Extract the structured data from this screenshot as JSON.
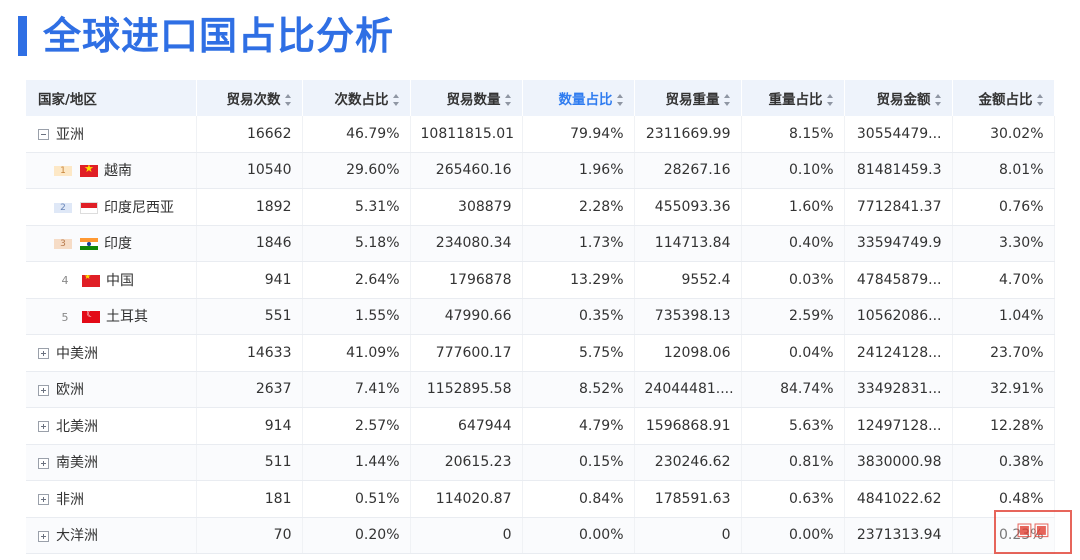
{
  "title": "全球进口国占比分析",
  "columns": [
    {
      "label": "国家/地区",
      "sortable": false,
      "active": false
    },
    {
      "label": "贸易次数",
      "sortable": true,
      "active": false
    },
    {
      "label": "次数占比",
      "sortable": true,
      "active": false
    },
    {
      "label": "贸易数量",
      "sortable": true,
      "active": false
    },
    {
      "label": "数量占比",
      "sortable": true,
      "active": true
    },
    {
      "label": "贸易重量",
      "sortable": true,
      "active": false
    },
    {
      "label": "重量占比",
      "sortable": true,
      "active": false
    },
    {
      "label": "贸易金额",
      "sortable": true,
      "active": false
    },
    {
      "label": "金额占比",
      "sortable": true,
      "active": false
    }
  ],
  "rows": [
    {
      "type": "region",
      "expanded": true,
      "name": "亚洲",
      "cells": [
        "16662",
        "46.79%",
        "10811815.01",
        "79.94%",
        "2311669.99",
        "8.15%",
        "30554479...",
        "30.02%"
      ]
    },
    {
      "type": "country",
      "rank": "1",
      "flag": "vn",
      "name": "越南",
      "cells": [
        "10540",
        "29.60%",
        "265460.16",
        "1.96%",
        "28267.16",
        "0.10%",
        "81481459.3",
        "8.01%"
      ]
    },
    {
      "type": "country",
      "rank": "2",
      "flag": "id",
      "name": "印度尼西亚",
      "cells": [
        "1892",
        "5.31%",
        "308879",
        "2.28%",
        "455093.36",
        "1.60%",
        "7712841.37",
        "0.76%"
      ]
    },
    {
      "type": "country",
      "rank": "3",
      "flag": "in",
      "name": "印度",
      "cells": [
        "1846",
        "5.18%",
        "234080.34",
        "1.73%",
        "114713.84",
        "0.40%",
        "33594749.9",
        "3.30%"
      ]
    },
    {
      "type": "country",
      "rank": "4",
      "flag": "cn",
      "name": "中国",
      "cells": [
        "941",
        "2.64%",
        "1796878",
        "13.29%",
        "9552.4",
        "0.03%",
        "47845879...",
        "4.70%"
      ]
    },
    {
      "type": "country",
      "rank": "5",
      "flag": "tr",
      "name": "土耳其",
      "cells": [
        "551",
        "1.55%",
        "47990.66",
        "0.35%",
        "735398.13",
        "2.59%",
        "10562086...",
        "1.04%"
      ]
    },
    {
      "type": "region",
      "expanded": false,
      "name": "中美洲",
      "cells": [
        "14633",
        "41.09%",
        "777600.17",
        "5.75%",
        "12098.06",
        "0.04%",
        "24124128...",
        "23.70%"
      ]
    },
    {
      "type": "region",
      "expanded": false,
      "name": "欧洲",
      "cells": [
        "2637",
        "7.41%",
        "1152895.58",
        "8.52%",
        "24044481....",
        "84.74%",
        "33492831...",
        "32.91%"
      ]
    },
    {
      "type": "region",
      "expanded": false,
      "name": "北美洲",
      "cells": [
        "914",
        "2.57%",
        "647944",
        "4.79%",
        "1596868.91",
        "5.63%",
        "12497128...",
        "12.28%"
      ]
    },
    {
      "type": "region",
      "expanded": false,
      "name": "南美洲",
      "cells": [
        "511",
        "1.44%",
        "20615.23",
        "0.15%",
        "230246.62",
        "0.81%",
        "3830000.98",
        "0.38%"
      ]
    },
    {
      "type": "region",
      "expanded": false,
      "name": "非洲",
      "cells": [
        "181",
        "0.51%",
        "114020.87",
        "0.84%",
        "178591.63",
        "0.63%",
        "4841022.62",
        "0.48%"
      ]
    },
    {
      "type": "region",
      "expanded": false,
      "name": "大洋洲",
      "cells": [
        "70",
        "0.20%",
        "0",
        "0.00%",
        "0",
        "0.00%",
        "2371313.94",
        "0.23%"
      ]
    }
  ],
  "colors": {
    "accent": "#2f6fe4",
    "active_header": "#2f7cf0",
    "header_bg": "#eef3fb"
  }
}
